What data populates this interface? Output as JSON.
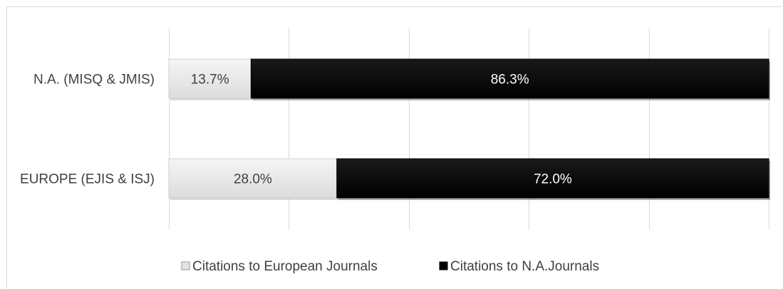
{
  "chart_data": {
    "type": "bar",
    "orientation": "horizontal",
    "stacked": true,
    "percent_stacked": true,
    "categories": [
      "N.A. (MISQ & JMIS)",
      "EUROPE (EJIS & ISJ)"
    ],
    "series": [
      {
        "name": "Citations to European Journals",
        "values": [
          13.7,
          28.0
        ],
        "labels": [
          "13.7%",
          "28.0%"
        ],
        "color": "#e4e4e4"
      },
      {
        "name": "Citations to N.A.Journals",
        "values": [
          86.3,
          72.0
        ],
        "labels": [
          "86.3%",
          "72.0%"
        ],
        "color": "#000000"
      }
    ],
    "xlim": [
      0,
      100
    ],
    "gridlines": true,
    "gridline_count": 6,
    "legend_position": "bottom",
    "colors": {
      "grid": "#d9d9d9",
      "text": "#404040",
      "dark_label": "#ffffff",
      "light_label": "#404040"
    }
  }
}
